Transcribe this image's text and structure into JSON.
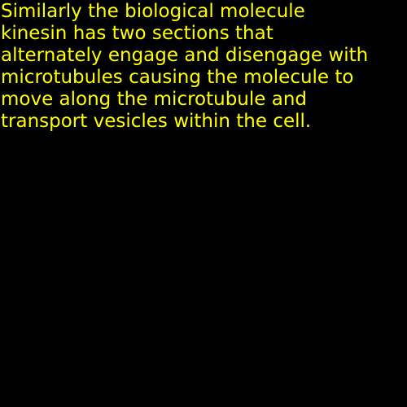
{
  "caption": {
    "text": "Similarly the biological molecule\nkinesin has two sections that\nalternately engage and disengage with\nmicrotubules causing the molecule to\nmove along the microtubule and\ntransport vesicles within the cell.",
    "text_color": "#ffff00",
    "background_color": "#000000"
  }
}
